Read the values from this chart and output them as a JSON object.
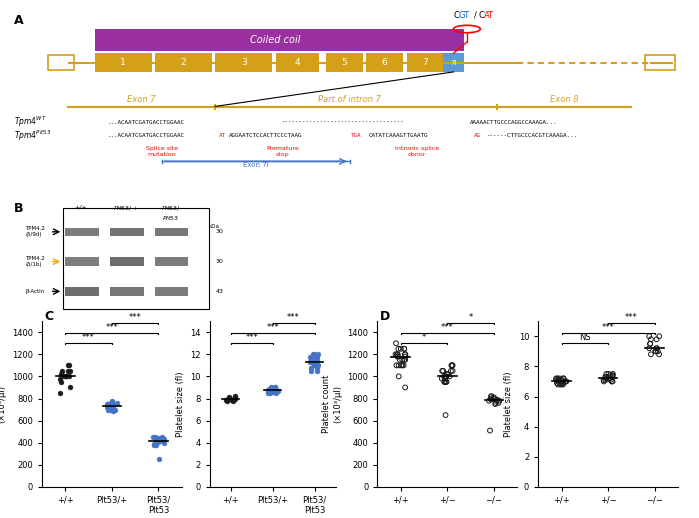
{
  "panel_A": {
    "exons": [
      1,
      2,
      3,
      4,
      5,
      6,
      7
    ],
    "coiled_coil_color": "#9B30A0",
    "exon_color": "#D4A017",
    "exon7i_color": "#5B9BD5",
    "cgt_text": "CGT",
    "cat_text": "CAT",
    "label_A": "A"
  },
  "panel_B": {
    "label_B": "B"
  },
  "panel_C": {
    "label_C": "C",
    "groups": [
      "+/+",
      "Plt53/+",
      "Plt53/\nPlt53"
    ],
    "platelet_count": {
      "+/+": [
        1000,
        1050,
        1100,
        1000,
        950,
        1020,
        980,
        1100,
        1000,
        1050,
        850,
        900,
        1000,
        1050
      ],
      "Plt53/+": [
        750,
        720,
        700,
        780,
        760,
        730,
        690,
        710,
        750,
        740,
        720,
        700,
        750,
        760,
        730,
        720,
        710,
        700,
        750,
        760
      ],
      "Plt53/Plt53": [
        400,
        450,
        420,
        380,
        430,
        410,
        390,
        440,
        450,
        420,
        380,
        430,
        410,
        250,
        420,
        450,
        430
      ]
    },
    "platelet_size": {
      "+/+": [
        7.8,
        8.0,
        8.2,
        7.9,
        8.1,
        7.8,
        8.0,
        7.9,
        8.1,
        8.0
      ],
      "Plt53/+": [
        8.5,
        8.8,
        9.0,
        8.7,
        8.6,
        8.9,
        8.8,
        8.5,
        8.7,
        9.0,
        8.6,
        8.8,
        8.5,
        8.9,
        9.0,
        8.7,
        8.6,
        8.8
      ],
      "Plt53/Plt53": [
        10.5,
        11.0,
        11.5,
        11.2,
        11.8,
        12.0,
        11.3,
        10.8,
        11.5,
        12.0,
        11.0,
        11.5,
        11.8,
        10.5,
        11.0,
        11.5,
        11.2,
        11.8,
        12.0,
        11.3,
        10.8
      ]
    },
    "colors": [
      "#1a1a1a",
      "#4472C4",
      "#4F86C6"
    ],
    "count_ylim": [
      0,
      1500
    ],
    "size_ylim": [
      0,
      15
    ]
  },
  "panel_D": {
    "label_D": "D",
    "groups": [
      "+/+",
      "+/−",
      "−/−"
    ],
    "platelet_count": {
      "+/+": [
        1200,
        1150,
        1100,
        1250,
        1200,
        1180,
        1150,
        1100,
        1200,
        1300,
        1250,
        1200,
        1180,
        1150,
        1100,
        1200,
        1250,
        1180,
        1150,
        1100,
        1250,
        900,
        1000,
        1100
      ],
      "+/-": [
        1000,
        950,
        1050,
        1100,
        980,
        1020,
        1000,
        950,
        1050,
        650,
        1100,
        980,
        1020,
        1000,
        950,
        1050,
        1100,
        980,
        1020,
        1000,
        950,
        1050
      ],
      "-/-": [
        750,
        800,
        780,
        820,
        760,
        790,
        510,
        810,
        780,
        820,
        760,
        790,
        800,
        780
      ]
    },
    "platelet_size": {
      "+/+": [
        7.0,
        6.8,
        7.2,
        7.1,
        6.9,
        7.0,
        7.2,
        6.8,
        7.1,
        6.9,
        7.0,
        7.2,
        6.8,
        7.1,
        6.9,
        7.0,
        7.2,
        6.8,
        7.0,
        7.2
      ],
      "+/-": [
        7.2,
        7.0,
        7.5,
        7.3,
        7.1,
        7.4,
        7.0,
        7.2,
        7.5,
        7.3,
        7.1,
        7.4,
        7.0,
        7.2,
        7.5,
        7.3,
        7.1,
        7.4
      ],
      "-/-": [
        8.8,
        9.0,
        9.2,
        9.5,
        9.8,
        10.0,
        9.0,
        9.2,
        9.5,
        9.8,
        10.0,
        8.8,
        9.0,
        9.2
      ]
    },
    "colors": [
      "#1a1a1a",
      "#1a1a1a",
      "#1a1a1a"
    ],
    "count_ylim": [
      0,
      1500
    ],
    "size_ylim": [
      0,
      11
    ]
  }
}
